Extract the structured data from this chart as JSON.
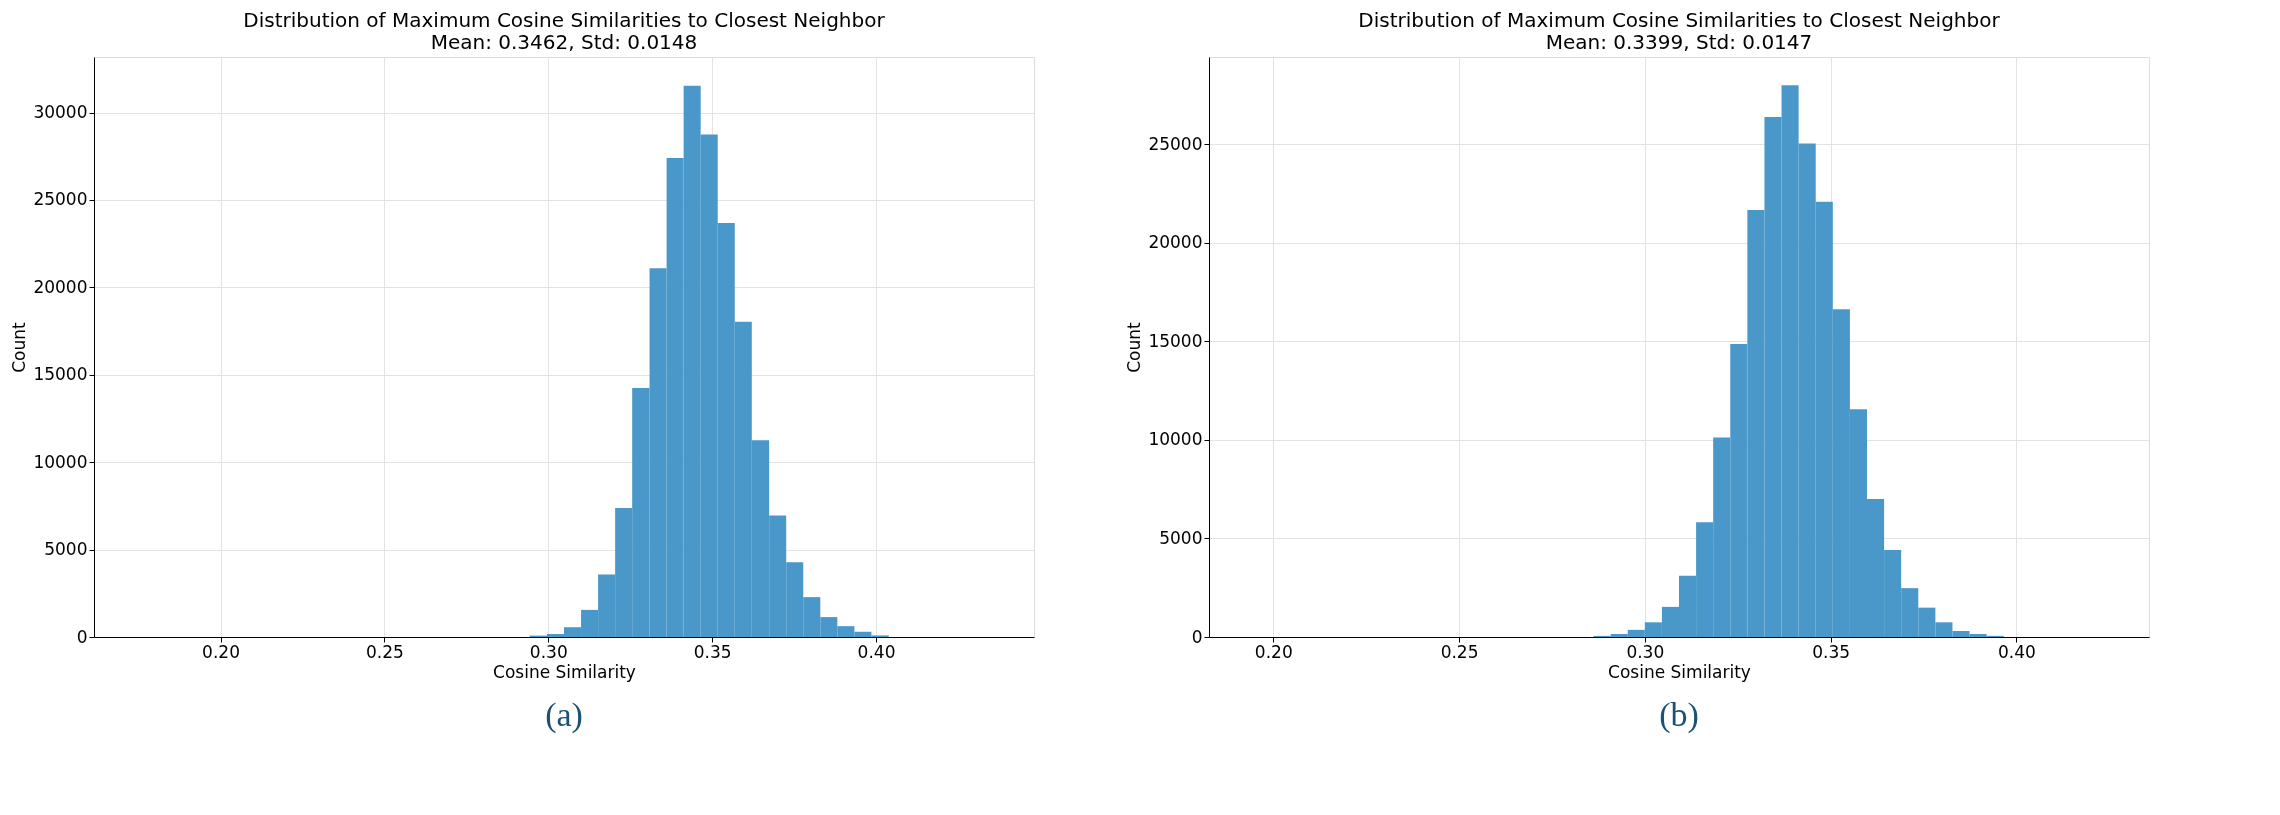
{
  "chart_data": [
    {
      "type": "histogram",
      "title": "Distribution of Maximum Cosine Similarities to Closest Neighbor",
      "subtitle": "Mean: 0.3462, Std: 0.0148",
      "xlabel": "Cosine Similarity",
      "ylabel": "Count",
      "color": "#4a98c9",
      "grid": true,
      "bins": [
        0.1744,
        0.1796,
        0.1848,
        0.19,
        0.1953,
        0.2005,
        0.2057,
        0.2109,
        0.2161,
        0.2213,
        0.2266,
        0.2318,
        0.237,
        0.2422,
        0.2474,
        0.2526,
        0.2578,
        0.2631,
        0.2683,
        0.2735,
        0.2787,
        0.2839,
        0.2891,
        0.2943,
        0.2996,
        0.3048,
        0.31,
        0.3152,
        0.3204,
        0.3256,
        0.3309,
        0.3361,
        0.3413,
        0.3465,
        0.3517,
        0.3569,
        0.3621,
        0.3674,
        0.3726,
        0.3778,
        0.383,
        0.3882,
        0.3934,
        0.3986,
        0.4039,
        0.4091,
        0.4143,
        0.4195,
        0.4247,
        0.4299,
        0.4352
      ],
      "values": [
        0,
        0,
        0,
        0,
        0,
        0,
        0,
        0,
        0,
        0,
        0,
        0,
        0,
        0,
        0,
        0,
        0,
        0,
        0,
        0,
        0,
        0,
        0,
        80,
        170,
        560,
        1550,
        3570,
        7380,
        14250,
        21090,
        27400,
        31530,
        28750,
        23690,
        18030,
        11250,
        6950,
        4280,
        2280,
        1140,
        620,
        300,
        90,
        0,
        0,
        0,
        0,
        0,
        0
      ],
      "xlim": [
        0.1614,
        0.4482
      ],
      "xticks": [
        {
          "value": 0.2,
          "label": "0.20"
        },
        {
          "value": 0.25,
          "label": "0.25"
        },
        {
          "value": 0.3,
          "label": "0.30"
        },
        {
          "value": 0.35,
          "label": "0.35"
        },
        {
          "value": 0.4,
          "label": "0.40"
        }
      ],
      "ylim": [
        0,
        33180
      ],
      "yticks": [
        0,
        5000,
        10000,
        15000,
        20000,
        25000,
        30000
      ],
      "annotations": [
        "(a)"
      ]
    },
    {
      "type": "histogram",
      "title": "Distribution of Maximum Cosine Similarities to Closest Neighbor",
      "subtitle": "Mean: 0.3399, Std: 0.0147",
      "xlabel": "Cosine Similarity",
      "ylabel": "Count",
      "color": "#4a98c9",
      "grid": true,
      "bins": [
        0.1942,
        0.1988,
        0.2034,
        0.208,
        0.2126,
        0.2172,
        0.2218,
        0.2264,
        0.231,
        0.2356,
        0.2402,
        0.2448,
        0.2494,
        0.254,
        0.2586,
        0.2632,
        0.2678,
        0.2724,
        0.277,
        0.2816,
        0.2862,
        0.2908,
        0.2954,
        0.3,
        0.3046,
        0.3092,
        0.3138,
        0.3184,
        0.323,
        0.3276,
        0.3322,
        0.3368,
        0.3414,
        0.346,
        0.3506,
        0.3552,
        0.3598,
        0.3644,
        0.369,
        0.3736,
        0.3782,
        0.3828,
        0.3874,
        0.392,
        0.3966,
        0.4012,
        0.4058,
        0.4104,
        0.415,
        0.4196,
        0.4242
      ],
      "values": [
        0,
        0,
        0,
        0,
        0,
        0,
        0,
        0,
        0,
        0,
        0,
        0,
        0,
        0,
        0,
        0,
        0,
        0,
        0,
        0,
        57,
        153,
        363,
        745,
        1530,
        3115,
        5830,
        10130,
        14870,
        21670,
        26390,
        28000,
        25050,
        22090,
        16630,
        11560,
        7010,
        4410,
        2480,
        1490,
        745,
        306,
        153,
        57,
        0,
        0,
        0,
        0,
        0,
        0
      ],
      "xlim": [
        0.1827,
        0.4357
      ],
      "xticks": [
        {
          "value": 0.2,
          "label": "0.20"
        },
        {
          "value": 0.25,
          "label": "0.25"
        },
        {
          "value": 0.3,
          "label": "0.30"
        },
        {
          "value": 0.35,
          "label": "0.35"
        },
        {
          "value": 0.4,
          "label": "0.40"
        }
      ],
      "ylim": [
        0,
        29440
      ],
      "yticks": [
        0,
        5000,
        10000,
        15000,
        20000,
        25000
      ],
      "annotations": [
        "(b)"
      ]
    }
  ]
}
